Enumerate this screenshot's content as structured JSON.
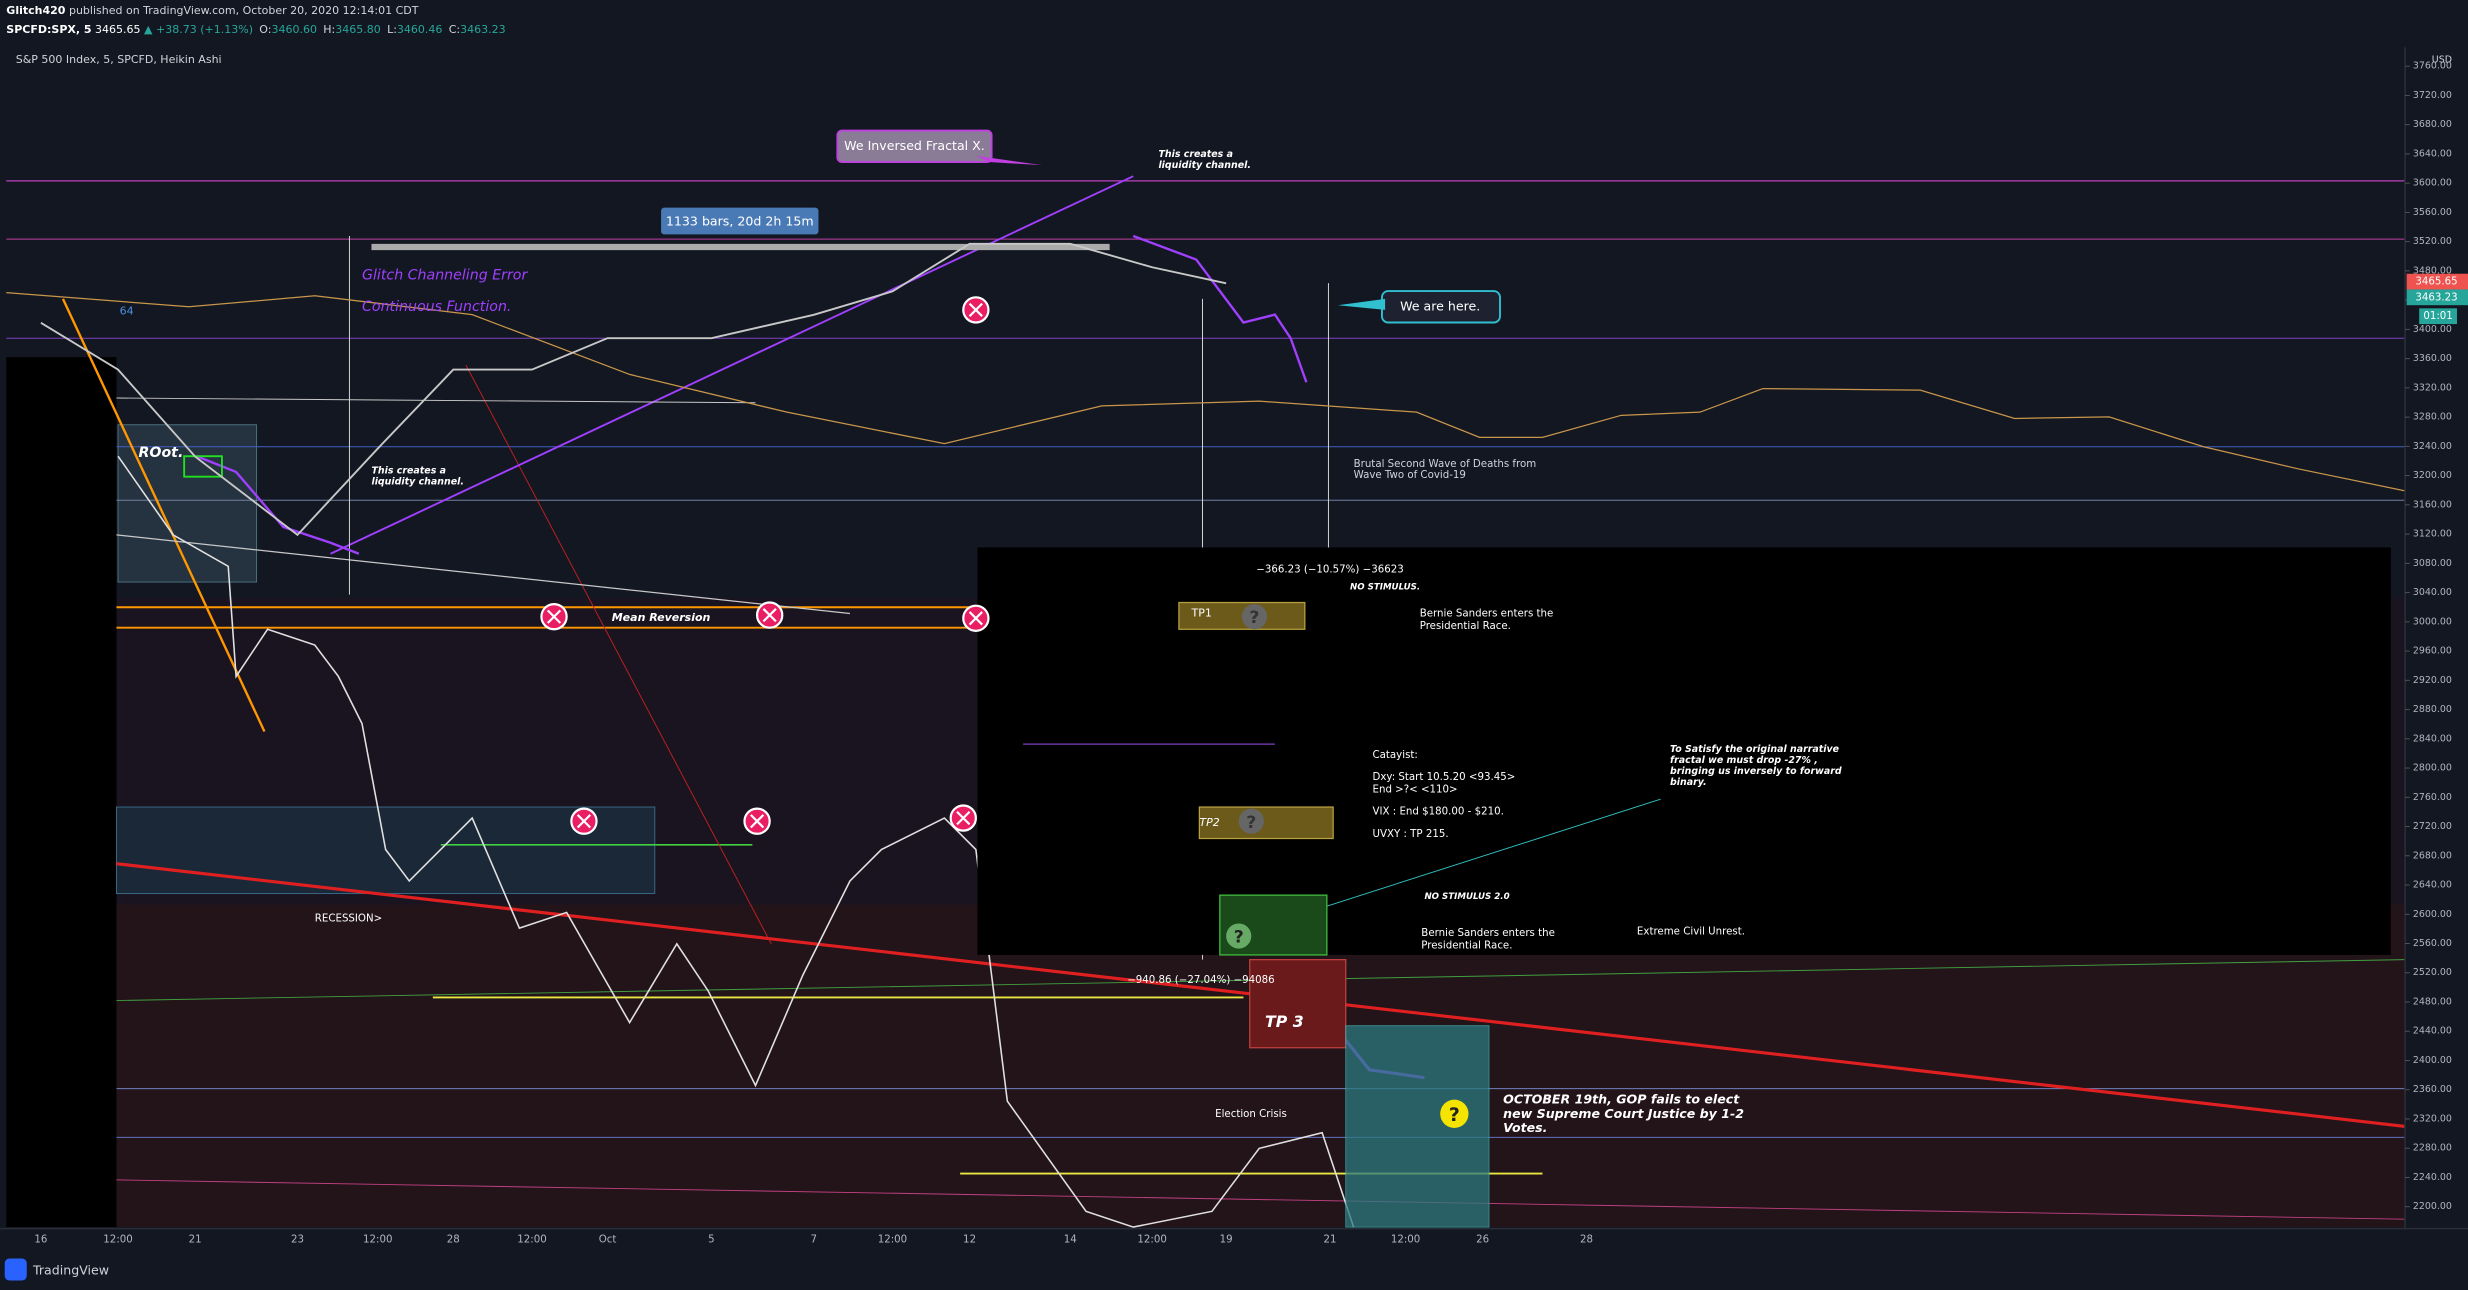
{
  "header": {
    "author": "Glitch420",
    "published": "published on TradingView.com, October 20, 2020 12:14:01 CDT",
    "symbol": "SPCFD:SPX, 5",
    "price": "3465.65",
    "change": "▲ +38.73 (+1.13%)",
    "ohlc": [
      {
        "k": "O:",
        "v": "3460.60"
      },
      {
        "k": "H:",
        "v": "3465.80"
      },
      {
        "k": "L:",
        "v": "3460.46"
      },
      {
        "k": "C:",
        "v": "3463.23"
      }
    ]
  },
  "chart_data": {
    "type": "line",
    "title": "S&P 500 Index, 5, SPCFD, Heikin Ashi",
    "y_unit": "USD",
    "timer": "01:01",
    "categories": [
      "16",
      "12:00",
      "21",
      "23",
      "12:00",
      "28",
      "12:00",
      "Oct",
      "5",
      "7",
      "12:00",
      "12",
      "14",
      "12:00",
      "19",
      "21",
      "12:00",
      "26",
      "28"
    ],
    "values": [
      3409,
      3345,
      3226,
      3119,
      3237,
      3345,
      3345,
      3388,
      3388,
      3420,
      3452,
      3517,
      3517,
      3485,
      3463,
      null,
      null,
      null,
      null
    ],
    "color": "#c8c8c8",
    "ylim": [
      2170,
      3786
    ],
    "yticks": [
      {
        "value": 2200,
        "label": "2200.00"
      },
      {
        "value": 2240,
        "label": "2240.00"
      },
      {
        "value": 2280,
        "label": "2280.00"
      },
      {
        "value": 2320,
        "label": "2320.00"
      },
      {
        "value": 2360,
        "label": "2360.00"
      },
      {
        "value": 2400,
        "label": "2400.00"
      },
      {
        "value": 2440,
        "label": "2440.00"
      },
      {
        "value": 2480,
        "label": "2480.00"
      },
      {
        "value": 2520,
        "label": "2520.00"
      },
      {
        "value": 2560,
        "label": "2560.00"
      },
      {
        "value": 2600,
        "label": "2600.00"
      },
      {
        "value": 2640,
        "label": "2640.00"
      },
      {
        "value": 2680,
        "label": "2680.00"
      },
      {
        "value": 2720,
        "label": "2720.00"
      },
      {
        "value": 2760,
        "label": "2760.00"
      },
      {
        "value": 2800,
        "label": "2800.00"
      },
      {
        "value": 2840,
        "label": "2840.00"
      },
      {
        "value": 2880,
        "label": "2880.00"
      },
      {
        "value": 2920,
        "label": "2920.00"
      },
      {
        "value": 2960,
        "label": "2960.00"
      },
      {
        "value": 3000,
        "label": "3000.00"
      },
      {
        "value": 3040,
        "label": "3040.00"
      },
      {
        "value": 3080,
        "label": "3080.00"
      },
      {
        "value": 3120,
        "label": "3120.00"
      },
      {
        "value": 3160,
        "label": "3160.00"
      },
      {
        "value": 3200,
        "label": "3200.00"
      },
      {
        "value": 3240,
        "label": "3240.00"
      },
      {
        "value": 3280,
        "label": "3280.00"
      },
      {
        "value": 3320,
        "label": "3320.00"
      },
      {
        "value": 3360,
        "label": "3360.00"
      },
      {
        "value": 3400,
        "label": "3400.00"
      },
      {
        "value": 3440,
        "label": "3440.00"
      },
      {
        "value": 3480,
        "label": "3480.00"
      },
      {
        "value": 3520,
        "label": "3520.00"
      },
      {
        "value": 3560,
        "label": "3560.00"
      },
      {
        "value": 3600,
        "label": "3600.00"
      },
      {
        "value": 3640,
        "label": "3640.00"
      },
      {
        "value": 3680,
        "label": "3680.00"
      },
      {
        "value": 3720,
        "label": "3720.00"
      },
      {
        "value": 3760,
        "label": "3760.00"
      }
    ]
  },
  "annotations": {
    "inversed": "We Inversed Fractal X.",
    "liquidity_1": [
      "This creates a",
      "liquidity channel."
    ],
    "liquidity_2": [
      "This creates a",
      "liquidity channel."
    ],
    "bars": "1133 bars, 20d 2h 15m",
    "glitch": "Glitch Channeling Error",
    "continuous": "Continuous Function.",
    "here": "We are here.",
    "root": "ROot.",
    "ma_length": "64",
    "brutal": [
      "Brutal Second Wave of Deaths from",
      "Wave Two of Covid-19"
    ],
    "measure_1": "−366.23 (−10.57%) −36623",
    "no_stimulus": "NO STIMULUS.",
    "tp1": "TP1",
    "bernie_1": [
      "Bernie Sanders enters the",
      "Presidential Race."
    ],
    "mean_reversion": "Mean Reversion",
    "catalyst": [
      "Catayist:",
      "Dxy: Start 10.5.20 <93.45>",
      "End >?< <110>",
      "VIX : End $180.00 - $210.",
      "UVXY : TP 215."
    ],
    "satisfy": [
      "To Satisfy the original narrative",
      "fractal we must drop -27% ,",
      "bringing us inversely to forward",
      "binary."
    ],
    "tp2": "TP2",
    "no_stimulus_2": "NO STIMULUS 2.0",
    "bernie_2": [
      "Bernie Sanders enters the",
      "Presidential Race."
    ],
    "unrest": "Extreme Civil Unrest.",
    "recession": "RECESSION>",
    "measure_2": "−940.86 (−27.04%) −94086",
    "tp3": "TP 3",
    "election": "Election Crisis",
    "october": [
      "OCTOBER 19th, GOP fails to elect",
      "new Supreme Court Justice by 1-2",
      "Votes."
    ],
    "question": "?"
  },
  "footer": {
    "brand": "TradingView"
  }
}
